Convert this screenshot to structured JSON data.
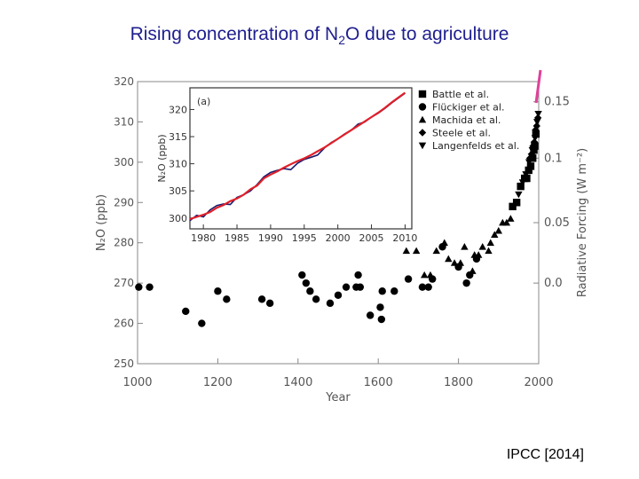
{
  "slide": {
    "title_prefix": "Rising concentration of N",
    "title_sub": "2",
    "title_suffix": "O due to agriculture",
    "credit": "IPCC [2014]"
  },
  "colors": {
    "title": "#1f1f8f",
    "axis": "#888888",
    "marker": "#000000",
    "series_red": "#e0202a",
    "series_navy": "#1a1a6e",
    "pink_line": "#e0409a"
  },
  "chart_data": {
    "type": "scatter",
    "xlabel": "Year",
    "ylabel": "N₂O (ppb)",
    "y2label": "Radiative Forcing (W m⁻²)",
    "xlim": [
      1000,
      2000
    ],
    "ylim": [
      250,
      320
    ],
    "xticks": [
      1000,
      1200,
      1400,
      1600,
      1800,
      2000
    ],
    "yticks": [
      250,
      260,
      270,
      280,
      290,
      300,
      310,
      320
    ],
    "y2ticks": [
      {
        "label": "0.0",
        "n2o": 270
      },
      {
        "label": "0.05",
        "n2o": 285
      },
      {
        "label": "0.1",
        "n2o": 301
      },
      {
        "label": "0.15",
        "n2o": 315
      }
    ],
    "legend": {
      "placement": "top-right",
      "entries": [
        {
          "marker": "square",
          "label": "Battle et al."
        },
        {
          "marker": "circle",
          "label": "Flückiger et al."
        },
        {
          "marker": "triangle-up",
          "label": "Machida et al."
        },
        {
          "marker": "diamond",
          "label": "Steele et al."
        },
        {
          "marker": "triangle-down",
          "label": "Langenfelds et al."
        }
      ]
    },
    "series": [
      {
        "name": "Flückiger et al.",
        "marker": "circle",
        "points": [
          [
            1003,
            269
          ],
          [
            1030,
            269
          ],
          [
            1120,
            263
          ],
          [
            1160,
            260
          ],
          [
            1200,
            268
          ],
          [
            1222,
            266
          ],
          [
            1310,
            266
          ],
          [
            1330,
            265
          ],
          [
            1410,
            272
          ],
          [
            1420,
            270
          ],
          [
            1430,
            268
          ],
          [
            1445,
            266
          ],
          [
            1480,
            265
          ],
          [
            1500,
            267
          ],
          [
            1520,
            269
          ],
          [
            1545,
            269
          ],
          [
            1550,
            272
          ],
          [
            1555,
            269
          ],
          [
            1580,
            262
          ],
          [
            1605,
            264
          ],
          [
            1608,
            261
          ],
          [
            1610,
            268
          ],
          [
            1640,
            268
          ],
          [
            1675,
            271
          ],
          [
            1710,
            269
          ],
          [
            1725,
            269
          ],
          [
            1735,
            271
          ],
          [
            1760,
            279
          ],
          [
            1800,
            274
          ],
          [
            1820,
            270
          ],
          [
            1828,
            272
          ],
          [
            1845,
            276
          ]
        ]
      },
      {
        "name": "Machida et al.",
        "marker": "triangle-up",
        "points": [
          [
            1670,
            278
          ],
          [
            1695,
            278
          ],
          [
            1715,
            272
          ],
          [
            1730,
            272
          ],
          [
            1745,
            278
          ],
          [
            1765,
            280
          ],
          [
            1775,
            276
          ],
          [
            1790,
            275
          ],
          [
            1805,
            275
          ],
          [
            1815,
            279
          ],
          [
            1835,
            273
          ],
          [
            1840,
            277
          ],
          [
            1850,
            277
          ],
          [
            1860,
            279
          ],
          [
            1875,
            278
          ],
          [
            1880,
            280
          ],
          [
            1890,
            282
          ],
          [
            1900,
            283
          ],
          [
            1910,
            285
          ],
          [
            1920,
            285
          ],
          [
            1930,
            286
          ]
        ]
      },
      {
        "name": "Battle et al.",
        "marker": "square",
        "points": [
          [
            1935,
            289
          ],
          [
            1945,
            290
          ],
          [
            1955,
            294
          ],
          [
            1965,
            296
          ],
          [
            1970,
            296
          ],
          [
            1975,
            298
          ],
          [
            1980,
            299
          ],
          [
            1985,
            301
          ],
          [
            1988,
            303
          ],
          [
            1990,
            304
          ],
          [
            1993,
            307
          ]
        ]
      },
      {
        "name": "Steele et al.",
        "marker": "diamond",
        "points": [
          [
            1978,
            301
          ],
          [
            1982,
            302
          ],
          [
            1986,
            304
          ],
          [
            1989,
            305
          ],
          [
            1992,
            308
          ],
          [
            1995,
            309
          ],
          [
            1998,
            311
          ]
        ]
      },
      {
        "name": "Langenfelds et al.",
        "marker": "triangle-down",
        "points": [
          [
            1950,
            292
          ],
          [
            1960,
            295
          ],
          [
            1968,
            297
          ],
          [
            1976,
            300
          ],
          [
            1984,
            303
          ],
          [
            1991,
            306
          ],
          [
            1996,
            310
          ],
          [
            1999,
            312
          ]
        ]
      }
    ],
    "inset": {
      "label": "(a)",
      "ylabel": "N₂O (ppb)",
      "xlim": [
        1978,
        2011
      ],
      "ylim": [
        298,
        324
      ],
      "xticks": [
        1980,
        1985,
        1990,
        1995,
        2000,
        2005,
        2010
      ],
      "yticks": [
        300,
        305,
        310,
        315,
        320
      ],
      "series": [
        {
          "name": "navy",
          "points": [
            [
              1978,
              299.5
            ],
            [
              1979,
              300.5
            ],
            [
              1980,
              300.2
            ],
            [
              1981,
              301.5
            ],
            [
              1982,
              302.3
            ],
            [
              1983,
              302.6
            ],
            [
              1984,
              302.5
            ],
            [
              1985,
              303.8
            ],
            [
              1986,
              304.3
            ],
            [
              1987,
              305.0
            ],
            [
              1988,
              306.2
            ],
            [
              1989,
              307.6
            ],
            [
              1990,
              308.4
            ],
            [
              1991,
              308.8
            ],
            [
              1992,
              309.1
            ],
            [
              1993,
              308.9
            ],
            [
              1994,
              310.1
            ],
            [
              1995,
              310.8
            ],
            [
              1996,
              311.2
            ],
            [
              1997,
              311.6
            ],
            [
              1998,
              312.9
            ],
            [
              1999,
              313.9
            ],
            [
              2000,
              314.6
            ],
            [
              2001,
              315.5
            ],
            [
              2002,
              316.2
            ],
            [
              2003,
              317.3
            ],
            [
              2004,
              317.7
            ],
            [
              2005,
              318.6
            ],
            [
              2006,
              319.3
            ],
            [
              2007,
              320.2
            ],
            [
              2008,
              321.2
            ],
            [
              2009,
              322.1
            ],
            [
              2010,
              323.0
            ]
          ]
        },
        {
          "name": "red",
          "points": [
            [
              1978,
              299.8
            ],
            [
              1979,
              300.2
            ],
            [
              1980,
              300.6
            ],
            [
              1981,
              301.1
            ],
            [
              1982,
              301.9
            ],
            [
              1983,
              302.4
            ],
            [
              1984,
              303.1
            ],
            [
              1985,
              303.6
            ],
            [
              1986,
              304.3
            ],
            [
              1987,
              305.3
            ],
            [
              1988,
              306.0
            ],
            [
              1989,
              307.3
            ],
            [
              1990,
              308.0
            ],
            [
              1991,
              308.6
            ],
            [
              1992,
              309.3
            ],
            [
              1993,
              309.9
            ],
            [
              1994,
              310.5
            ],
            [
              1995,
              311.0
            ],
            [
              1996,
              311.6
            ],
            [
              1997,
              312.3
            ],
            [
              1998,
              313.0
            ],
            [
              1999,
              313.8
            ],
            [
              2000,
              314.6
            ],
            [
              2001,
              315.4
            ],
            [
              2002,
              316.2
            ],
            [
              2003,
              317.0
            ],
            [
              2004,
              317.8
            ],
            [
              2005,
              318.6
            ],
            [
              2006,
              319.4
            ],
            [
              2007,
              320.3
            ],
            [
              2008,
              321.3
            ],
            [
              2009,
              322.2
            ],
            [
              2010,
              323.1
            ]
          ]
        }
      ]
    }
  }
}
